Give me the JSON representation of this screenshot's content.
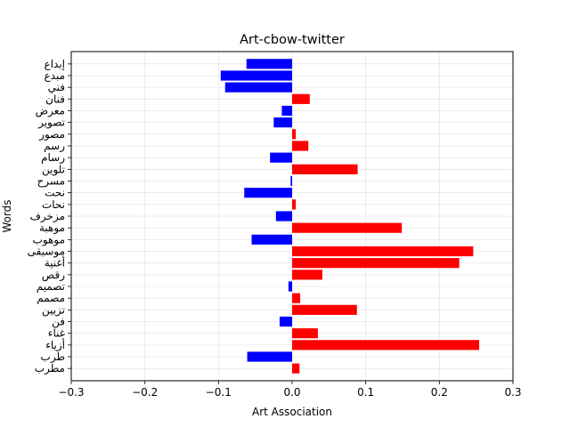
{
  "chart_data": {
    "type": "bar",
    "orientation": "horizontal",
    "title": "Art-cbow-twitter",
    "xlabel": "Art Association",
    "ylabel": "Words",
    "xlim": [
      -0.3,
      0.3
    ],
    "xticks": [
      "−0.3",
      "−0.2",
      "−0.1",
      "0.0",
      "0.1",
      "0.2",
      "0.3"
    ],
    "xtick_values": [
      -0.3,
      -0.2,
      -0.1,
      0.0,
      0.1,
      0.2,
      0.3
    ],
    "grid": true,
    "colors": {
      "positive": "#ff0000",
      "negative": "#0000ff"
    },
    "categories": [
      "إبداع",
      "مبدع",
      "فني",
      "فنان",
      "معرض",
      "تصوير",
      "مصور",
      "رسم",
      "رسام",
      "تلوين",
      "مسرح",
      "نحت",
      "نحات",
      "مزخرف",
      "موهبة",
      "موهوب",
      "موسيقى",
      "أغنية",
      "رقص",
      "تصميم",
      "مصمم",
      "تزيين",
      "فن",
      "غناء",
      "أزياء",
      "طرب",
      "مطرب"
    ],
    "values": [
      -0.062,
      -0.097,
      -0.091,
      0.024,
      -0.014,
      -0.025,
      0.005,
      0.022,
      -0.03,
      0.089,
      -0.002,
      -0.065,
      0.005,
      -0.022,
      0.149,
      -0.055,
      0.246,
      0.227,
      0.041,
      -0.005,
      0.011,
      0.088,
      -0.017,
      0.035,
      0.254,
      -0.061,
      0.01
    ]
  }
}
